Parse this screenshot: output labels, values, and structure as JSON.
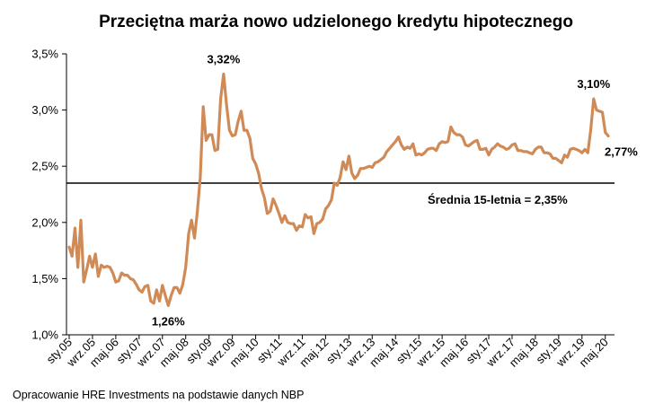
{
  "title": "Przeciętna marża nowo udzielonego kredytu hipotecznego",
  "source": "Opracowanie HRE Investments na podstawie danych NBP",
  "chart_data": {
    "type": "line",
    "title": "Przeciętna marża nowo udzielonego kredytu hipotecznego",
    "xlabel": "",
    "ylabel": "",
    "ylim": [
      1.0,
      3.5
    ],
    "grid": false,
    "legend": "none",
    "y_ticks": [
      "1,0%",
      "1,5%",
      "2,0%",
      "2,5%",
      "3,0%",
      "3,5%"
    ],
    "x_tick_labels": [
      "sty.05",
      "wrz.05",
      "maj.06",
      "sty.07",
      "wrz.07",
      "maj.08",
      "sty.09",
      "wrz.09",
      "maj.10",
      "sty.11",
      "wrz.11",
      "maj.12",
      "sty.13",
      "wrz.13",
      "maj.14",
      "sty.15",
      "wrz.15",
      "maj.16",
      "sty.17",
      "wrz.17",
      "maj.18",
      "sty.19",
      "wrz.19",
      "maj.20"
    ],
    "line_color": "#D08A56",
    "average": {
      "value": 2.35,
      "label": "Średnia 15-letnia = 2,35%",
      "color": "#000000"
    },
    "series": [
      {
        "points": [
          [
            0,
            1.78
          ],
          [
            1,
            1.7
          ],
          [
            2,
            1.95
          ],
          [
            3,
            1.6
          ],
          [
            4,
            2.02
          ],
          [
            5,
            1.47
          ],
          [
            6,
            1.58
          ],
          [
            7,
            1.7
          ],
          [
            8,
            1.6
          ],
          [
            9,
            1.72
          ],
          [
            10,
            1.52
          ],
          [
            11,
            1.62
          ],
          [
            12,
            1.6
          ],
          [
            13,
            1.61
          ],
          [
            14,
            1.6
          ],
          [
            15,
            1.55
          ],
          [
            16,
            1.47
          ],
          [
            17,
            1.48
          ],
          [
            18,
            1.55
          ],
          [
            19,
            1.53
          ],
          [
            20,
            1.53
          ],
          [
            21,
            1.5
          ],
          [
            22,
            1.49
          ],
          [
            23,
            1.45
          ],
          [
            24,
            1.4
          ],
          [
            25,
            1.38
          ],
          [
            26,
            1.43
          ],
          [
            27,
            1.44
          ],
          [
            28,
            1.3
          ],
          [
            29,
            1.28
          ],
          [
            30,
            1.4
          ],
          [
            31,
            1.3
          ],
          [
            32,
            1.44
          ],
          [
            33,
            1.35
          ],
          [
            34,
            1.26
          ],
          [
            35,
            1.35
          ],
          [
            36,
            1.42
          ],
          [
            37,
            1.42
          ],
          [
            38,
            1.37
          ],
          [
            39,
            1.45
          ],
          [
            40,
            1.6
          ],
          [
            41,
            1.9
          ],
          [
            42,
            2.02
          ],
          [
            43,
            1.86
          ],
          [
            44,
            2.1
          ],
          [
            45,
            2.4
          ],
          [
            46,
            3.03
          ],
          [
            47,
            2.73
          ],
          [
            48,
            2.78
          ],
          [
            49,
            2.78
          ],
          [
            50,
            2.64
          ],
          [
            51,
            2.65
          ],
          [
            52,
            3.1
          ],
          [
            53,
            3.32
          ],
          [
            54,
            3.05
          ],
          [
            55,
            2.82
          ],
          [
            56,
            2.77
          ],
          [
            57,
            2.78
          ],
          [
            58,
            2.9
          ],
          [
            59,
            2.99
          ],
          [
            60,
            2.82
          ],
          [
            61,
            2.82
          ],
          [
            62,
            2.75
          ],
          [
            63,
            2.57
          ],
          [
            64,
            2.52
          ],
          [
            65,
            2.44
          ],
          [
            66,
            2.3
          ],
          [
            67,
            2.22
          ],
          [
            68,
            2.08
          ],
          [
            69,
            2.1
          ],
          [
            70,
            2.21
          ],
          [
            71,
            2.15
          ],
          [
            72,
            2.08
          ],
          [
            73,
            2.0
          ],
          [
            74,
            2.06
          ],
          [
            75,
            2.0
          ],
          [
            76,
            1.99
          ],
          [
            77,
            1.99
          ],
          [
            78,
            1.93
          ],
          [
            79,
            1.97
          ],
          [
            80,
            1.96
          ],
          [
            81,
            2.07
          ],
          [
            82,
            2.04
          ],
          [
            83,
            2.05
          ],
          [
            84,
            1.9
          ],
          [
            85,
            1.99
          ],
          [
            86,
            2.0
          ],
          [
            87,
            2.03
          ],
          [
            88,
            2.12
          ],
          [
            89,
            2.15
          ],
          [
            90,
            2.2
          ],
          [
            91,
            2.35
          ],
          [
            92,
            2.33
          ],
          [
            93,
            2.4
          ],
          [
            94,
            2.54
          ],
          [
            95,
            2.47
          ],
          [
            96,
            2.59
          ],
          [
            97,
            2.44
          ],
          [
            98,
            2.39
          ],
          [
            99,
            2.42
          ],
          [
            100,
            2.48
          ],
          [
            101,
            2.48
          ],
          [
            102,
            2.49
          ],
          [
            103,
            2.5
          ],
          [
            104,
            2.49
          ],
          [
            105,
            2.53
          ],
          [
            106,
            2.54
          ],
          [
            107,
            2.56
          ],
          [
            108,
            2.58
          ],
          [
            109,
            2.63
          ],
          [
            110,
            2.66
          ],
          [
            111,
            2.69
          ],
          [
            112,
            2.72
          ],
          [
            113,
            2.76
          ],
          [
            114,
            2.69
          ],
          [
            115,
            2.65
          ],
          [
            116,
            2.67
          ],
          [
            117,
            2.66
          ],
          [
            118,
            2.7
          ],
          [
            119,
            2.6
          ],
          [
            120,
            2.61
          ],
          [
            121,
            2.6
          ],
          [
            122,
            2.62
          ],
          [
            123,
            2.65
          ],
          [
            124,
            2.66
          ],
          [
            125,
            2.66
          ],
          [
            126,
            2.64
          ],
          [
            127,
            2.7
          ],
          [
            128,
            2.72
          ],
          [
            129,
            2.71
          ],
          [
            130,
            2.72
          ],
          [
            131,
            2.85
          ],
          [
            132,
            2.8
          ],
          [
            133,
            2.78
          ],
          [
            134,
            2.78
          ],
          [
            135,
            2.76
          ],
          [
            136,
            2.69
          ],
          [
            137,
            2.68
          ],
          [
            138,
            2.7
          ],
          [
            139,
            2.72
          ],
          [
            140,
            2.73
          ],
          [
            141,
            2.65
          ],
          [
            142,
            2.65
          ],
          [
            143,
            2.66
          ],
          [
            144,
            2.6
          ],
          [
            145,
            2.65
          ],
          [
            146,
            2.67
          ],
          [
            147,
            2.7
          ],
          [
            148,
            2.68
          ],
          [
            149,
            2.67
          ],
          [
            150,
            2.65
          ],
          [
            151,
            2.66
          ],
          [
            152,
            2.69
          ],
          [
            153,
            2.7
          ],
          [
            154,
            2.64
          ],
          [
            155,
            2.64
          ],
          [
            156,
            2.63
          ],
          [
            157,
            2.63
          ],
          [
            158,
            2.62
          ],
          [
            159,
            2.61
          ],
          [
            160,
            2.65
          ],
          [
            161,
            2.67
          ],
          [
            162,
            2.67
          ],
          [
            163,
            2.62
          ],
          [
            164,
            2.62
          ],
          [
            165,
            2.61
          ],
          [
            166,
            2.57
          ],
          [
            167,
            2.57
          ],
          [
            168,
            2.55
          ],
          [
            169,
            2.53
          ],
          [
            170,
            2.6
          ],
          [
            171,
            2.58
          ],
          [
            172,
            2.65
          ],
          [
            173,
            2.66
          ],
          [
            174,
            2.65
          ],
          [
            175,
            2.64
          ],
          [
            176,
            2.62
          ],
          [
            177,
            2.65
          ],
          [
            178,
            2.62
          ],
          [
            179,
            2.82
          ],
          [
            180,
            3.1
          ],
          [
            181,
            3.0
          ],
          [
            182,
            2.99
          ],
          [
            183,
            2.98
          ],
          [
            184,
            2.8
          ],
          [
            185,
            2.77
          ]
        ]
      }
    ],
    "annotations": [
      {
        "x": 53,
        "y": 3.32,
        "text": "3,32%",
        "position": "above"
      },
      {
        "x": 34,
        "y": 1.26,
        "text": "1,26%",
        "position": "below"
      },
      {
        "x": 180,
        "y": 3.1,
        "text": "3,10%",
        "position": "above"
      },
      {
        "x": 185,
        "y": 2.77,
        "text": "2,77%",
        "position": "right"
      }
    ]
  }
}
